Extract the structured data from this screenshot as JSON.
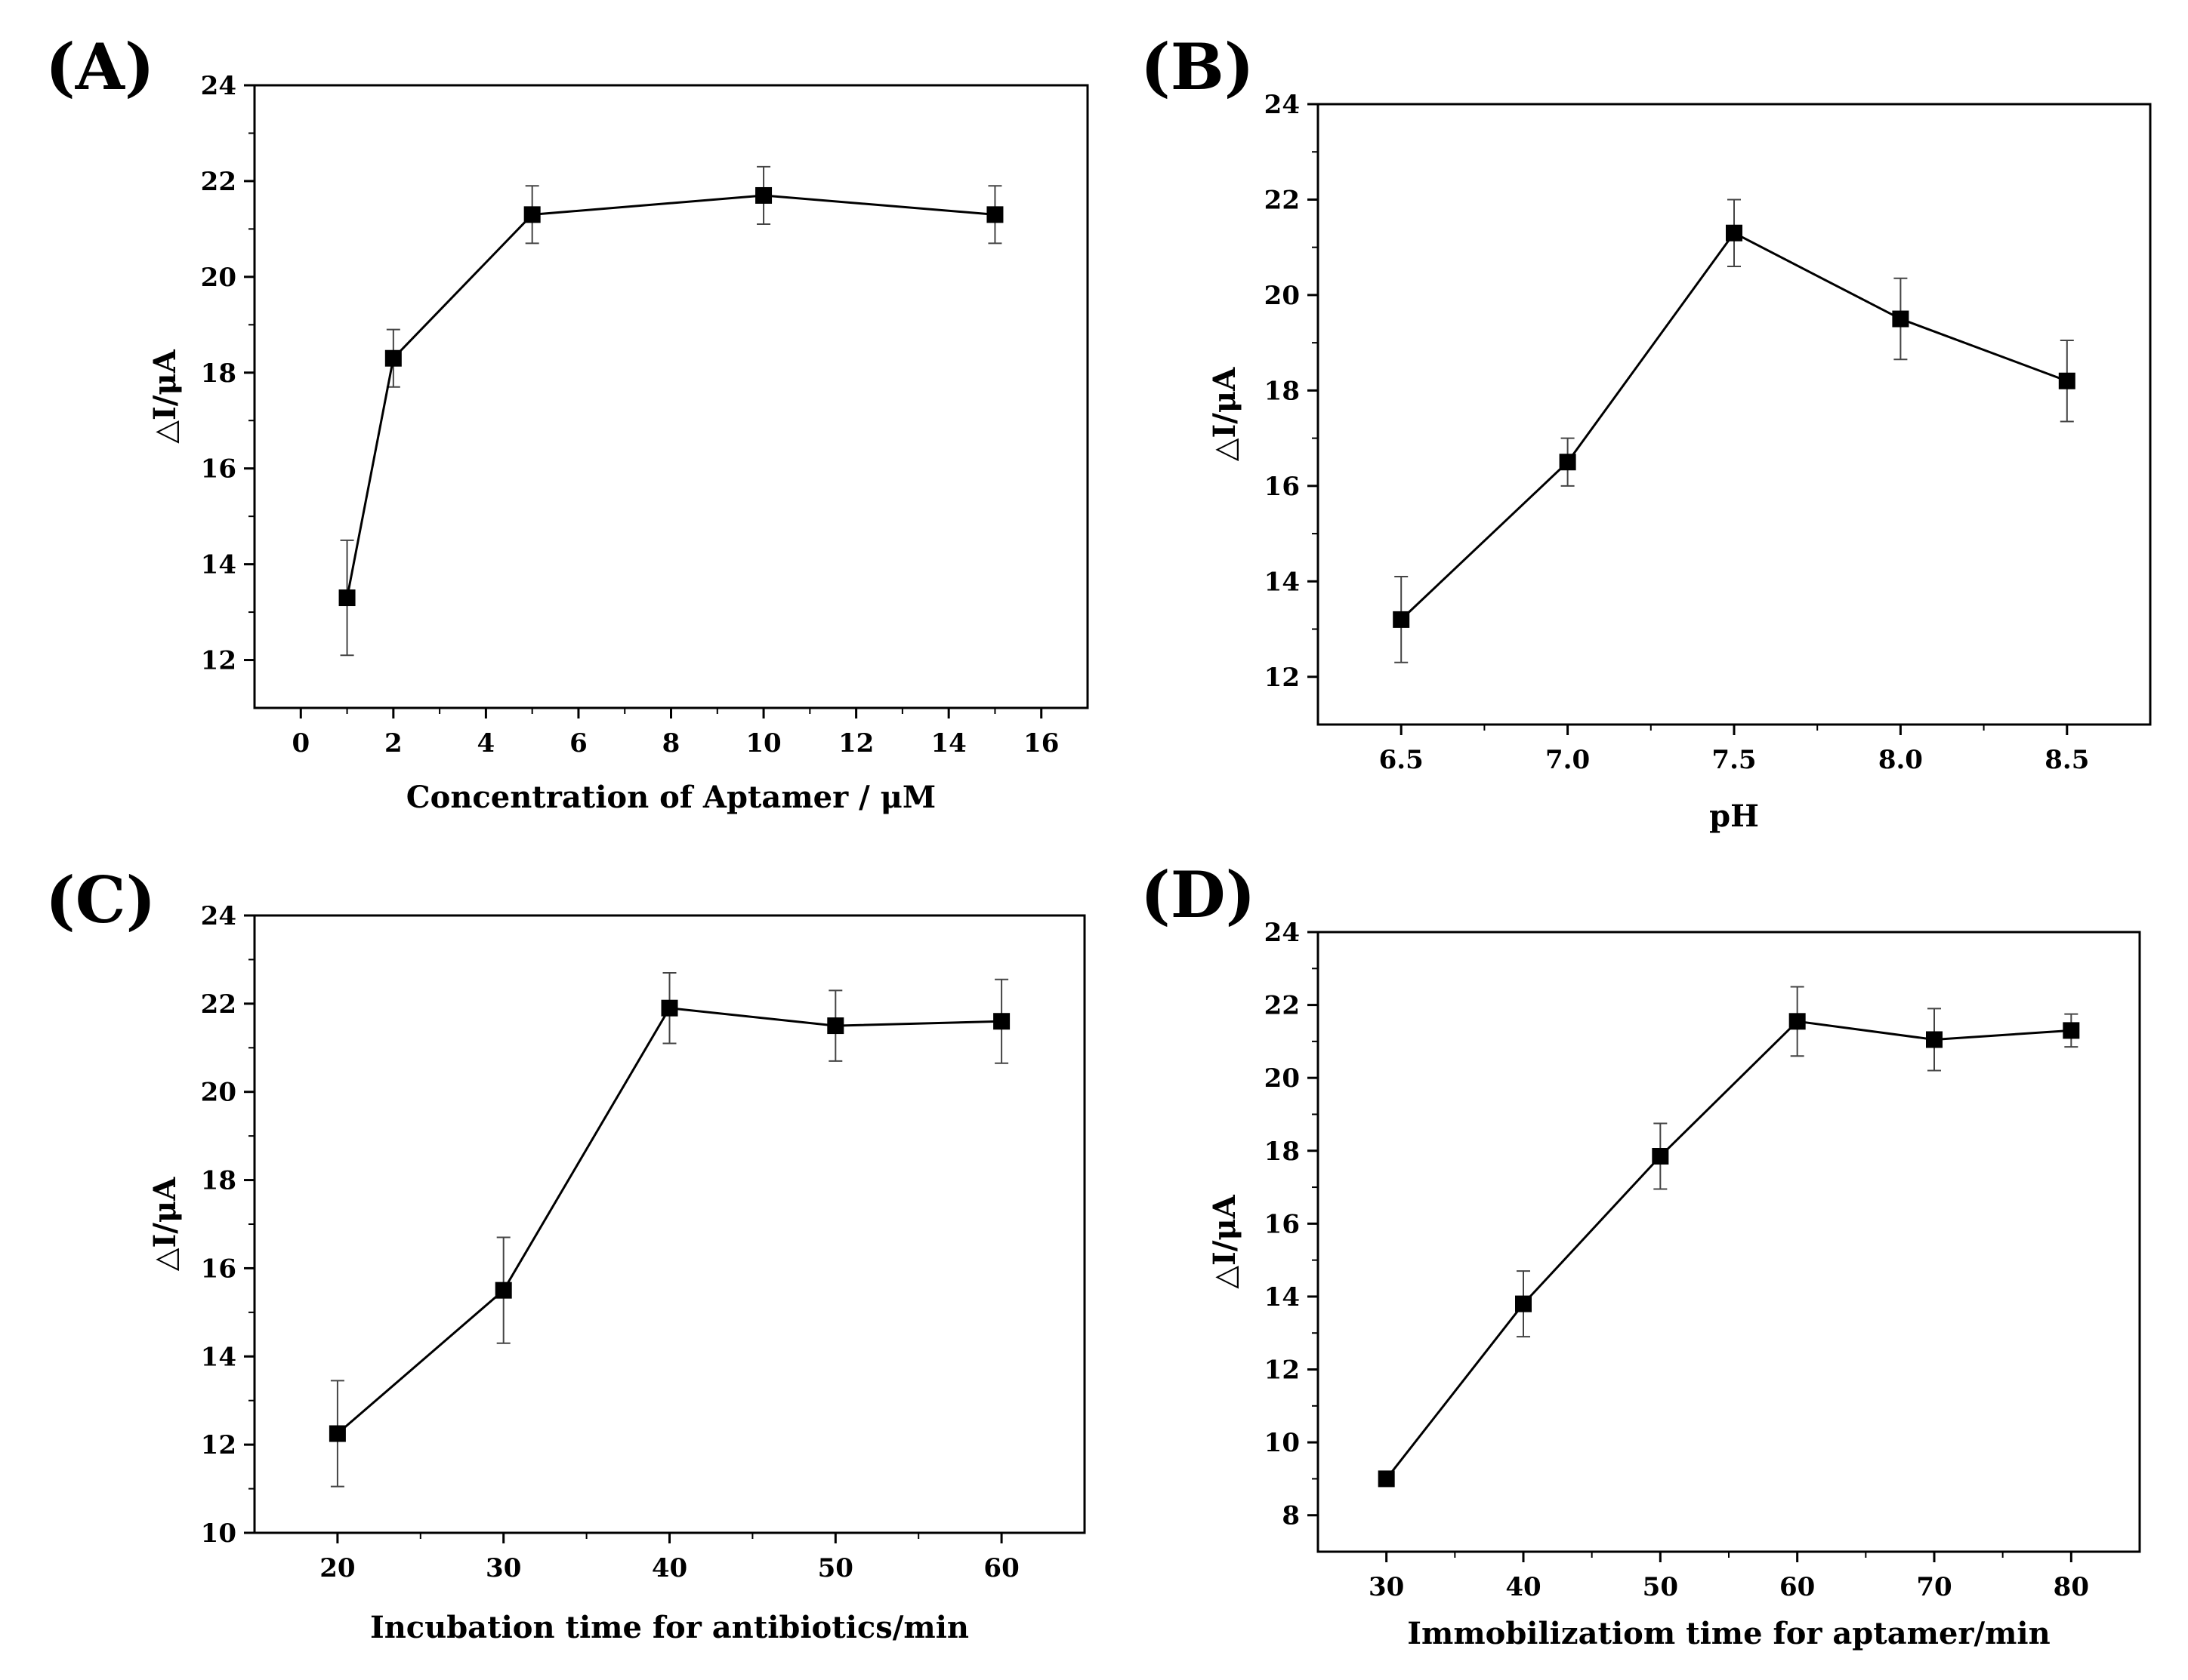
{
  "chart_data": [
    {
      "panel": "(A)",
      "type": "line",
      "x": [
        1,
        2,
        5,
        10,
        15
      ],
      "y": [
        13.3,
        18.3,
        21.3,
        21.7,
        21.3
      ],
      "err": [
        1.2,
        0.6,
        0.6,
        0.6,
        0.6
      ],
      "xlabel": "Concentration of Aptamer / μM",
      "ylabel": "△I/μA",
      "xlim": [
        -1,
        17
      ],
      "ylim": [
        11,
        24
      ],
      "xticks": [
        0,
        2,
        4,
        6,
        8,
        10,
        12,
        14,
        16
      ],
      "xtick_labels": [
        "0",
        "2",
        "4",
        "6",
        "8",
        "10",
        "12",
        "14",
        "16"
      ],
      "yticks": [
        12,
        14,
        16,
        18,
        20,
        22,
        24
      ],
      "ytick_labels": [
        "12",
        "14",
        "16",
        "18",
        "20",
        "22",
        "24"
      ],
      "marker": "square"
    },
    {
      "panel": "(B)",
      "type": "line",
      "x": [
        6.5,
        7.0,
        7.5,
        8.0,
        8.5
      ],
      "y": [
        13.2,
        16.5,
        21.3,
        19.5,
        18.2
      ],
      "err": [
        0.9,
        0.5,
        0.7,
        0.85,
        0.85
      ],
      "xlabel": "pH",
      "ylabel": "△I/μA",
      "xlim": [
        6.25,
        8.75
      ],
      "ylim": [
        11,
        24
      ],
      "xticks": [
        6.5,
        7.0,
        7.5,
        8.0,
        8.5
      ],
      "xtick_labels": [
        "6.5",
        "7.0",
        "7.5",
        "8.0",
        "8.5"
      ],
      "yticks": [
        12,
        14,
        16,
        18,
        20,
        22,
        24
      ],
      "ytick_labels": [
        "12",
        "14",
        "16",
        "18",
        "20",
        "22",
        "24"
      ],
      "marker": "square"
    },
    {
      "panel": "(C)",
      "type": "line",
      "x": [
        20,
        30,
        40,
        50,
        60
      ],
      "y": [
        12.25,
        15.5,
        21.9,
        21.5,
        21.6
      ],
      "err": [
        1.2,
        1.2,
        0.8,
        0.8,
        0.95
      ],
      "xlabel": "Incubation time for antibiotics/min",
      "ylabel": "△I/μA",
      "xlim": [
        15,
        65
      ],
      "ylim": [
        10,
        24
      ],
      "xticks": [
        20,
        30,
        40,
        50,
        60
      ],
      "xtick_labels": [
        "20",
        "30",
        "40",
        "50",
        "60"
      ],
      "yticks": [
        10,
        12,
        14,
        16,
        18,
        20,
        22,
        24
      ],
      "ytick_labels": [
        "10",
        "12",
        "14",
        "16",
        "18",
        "20",
        "22",
        "24"
      ],
      "marker": "square"
    },
    {
      "panel": "(D)",
      "type": "line",
      "x": [
        30,
        40,
        50,
        60,
        70,
        80
      ],
      "y": [
        9.0,
        13.8,
        17.85,
        21.55,
        21.05,
        21.3
      ],
      "err": [
        0.2,
        0.9,
        0.9,
        0.95,
        0.85,
        0.45
      ],
      "xlabel": "Immobilizatiom time for aptamer/min",
      "ylabel": "△I/μA",
      "xlim": [
        25,
        85
      ],
      "ylim": [
        7,
        24
      ],
      "xticks": [
        30,
        40,
        50,
        60,
        70,
        80
      ],
      "xtick_labels": [
        "30",
        "40",
        "50",
        "60",
        "70",
        "80"
      ],
      "yticks": [
        8,
        10,
        12,
        14,
        16,
        18,
        20,
        22,
        24
      ],
      "ytick_labels": [
        "8",
        "10",
        "12",
        "14",
        "16",
        "18",
        "20",
        "22",
        "24"
      ],
      "marker": "square"
    }
  ]
}
